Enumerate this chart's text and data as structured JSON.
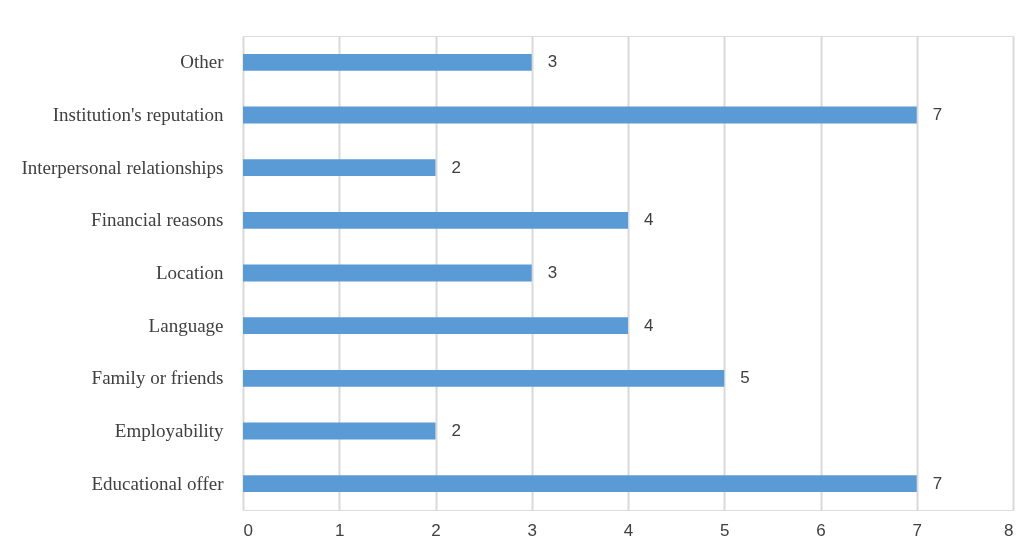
{
  "chart_data": {
    "type": "bar",
    "orientation": "horizontal",
    "categories": [
      "Other",
      "Institution's reputation",
      "Interpersonal relationships",
      "Financial reasons",
      "Location",
      "Language",
      "Family or friends",
      "Employability",
      "Educational offer"
    ],
    "values": [
      3,
      7,
      2,
      4,
      3,
      4,
      5,
      2,
      7
    ],
    "color": "#5b9bd5",
    "xlim": [
      0,
      8
    ],
    "xticks": [
      0,
      1,
      2,
      3,
      4,
      5,
      6,
      7,
      8
    ],
    "grid": "x",
    "data_labels": true
  }
}
